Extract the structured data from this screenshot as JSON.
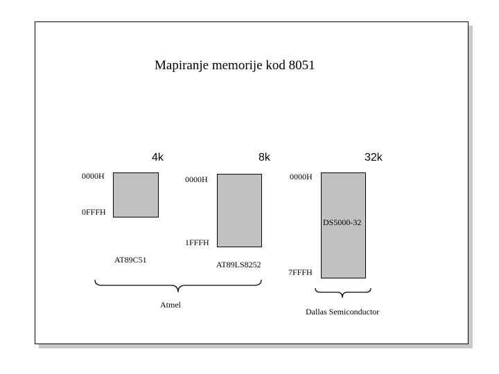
{
  "title": "Mapiranje memorije kod 8051",
  "sizes": [
    "4k",
    "8k",
    "32k"
  ],
  "addresses": {
    "at89c51_start": "0000H",
    "at89c51_end": "0FFFH",
    "at89ls8252_start": "0000H",
    "at89ls8252_end": "1FFFH",
    "ds5000_start": "0000H",
    "ds5000_end": "7FFFH"
  },
  "chips": {
    "at89c51": "AT89C51",
    "at89ls8252": "AT89LS8252",
    "ds5000": "DS5000-32"
  },
  "groups": {
    "atmel": "Atmel",
    "dallas": "Dallas Semiconductor"
  },
  "colors": {
    "block_fill": "#c0c0c0",
    "border": "#000000",
    "shadow": "#c8c8c8"
  }
}
